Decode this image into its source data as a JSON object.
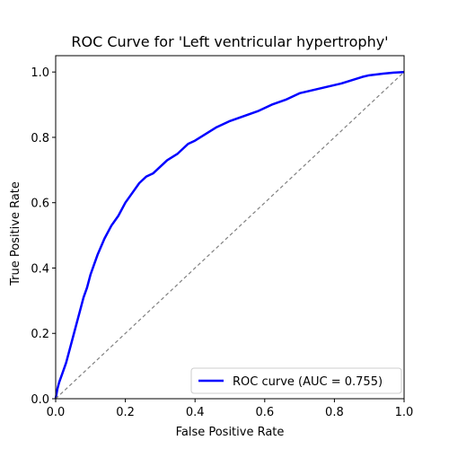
{
  "chart_data": {
    "type": "line",
    "title": "ROC Curve for 'Left ventricular hypertrophy'",
    "xlabel": "False Positive Rate",
    "ylabel": "True Positive Rate",
    "xlim": [
      0.0,
      1.0
    ],
    "ylim": [
      0.0,
      1.05
    ],
    "x_ticks": [
      "0.0",
      "0.2",
      "0.4",
      "0.6",
      "0.8",
      "1.0"
    ],
    "y_ticks": [
      "0.0",
      "0.2",
      "0.4",
      "0.6",
      "0.8",
      "1.0"
    ],
    "grid": false,
    "legend": {
      "position": "lower-right",
      "entries": [
        "ROC curve (AUC = 0.755)"
      ]
    },
    "series": [
      {
        "name": "ROC curve (AUC = 0.755)",
        "color": "#0000ff",
        "style": "solid",
        "x": [
          0.0,
          0.005,
          0.01,
          0.02,
          0.03,
          0.04,
          0.05,
          0.06,
          0.07,
          0.08,
          0.09,
          0.1,
          0.11,
          0.12,
          0.14,
          0.16,
          0.18,
          0.2,
          0.22,
          0.24,
          0.26,
          0.28,
          0.3,
          0.32,
          0.35,
          0.38,
          0.4,
          0.43,
          0.46,
          0.5,
          0.54,
          0.58,
          0.62,
          0.66,
          0.7,
          0.74,
          0.78,
          0.82,
          0.85,
          0.88,
          0.9,
          0.94,
          0.97,
          1.0
        ],
        "y": [
          0.0,
          0.03,
          0.05,
          0.08,
          0.11,
          0.15,
          0.19,
          0.23,
          0.27,
          0.31,
          0.34,
          0.38,
          0.41,
          0.44,
          0.49,
          0.53,
          0.56,
          0.6,
          0.63,
          0.66,
          0.68,
          0.69,
          0.71,
          0.73,
          0.75,
          0.78,
          0.79,
          0.81,
          0.83,
          0.85,
          0.865,
          0.88,
          0.9,
          0.915,
          0.935,
          0.945,
          0.955,
          0.965,
          0.975,
          0.985,
          0.99,
          0.995,
          0.998,
          1.0
        ]
      },
      {
        "name": "",
        "color": "#808080",
        "style": "dashed",
        "x": [
          0.0,
          1.0
        ],
        "y": [
          0.0,
          1.0
        ]
      }
    ]
  }
}
